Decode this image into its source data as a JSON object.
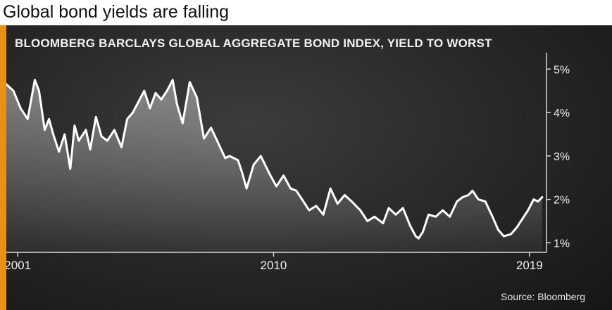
{
  "header": {
    "title": "Global bond yields are falling"
  },
  "chart_data": {
    "type": "area",
    "title": "BLOOMBERG BARCLAYS GLOBAL AGGREGATE BOND INDEX, YIELD TO WORST",
    "xlabel": "",
    "ylabel": "",
    "x_ticks": [
      {
        "value": 2001.0,
        "label": "2001"
      },
      {
        "value": 2010.0,
        "label": "2010"
      },
      {
        "value": 2019.0,
        "label": "2019"
      }
    ],
    "y_ticks": [
      {
        "value": 5,
        "label": "5%"
      },
      {
        "value": 4,
        "label": "4%"
      },
      {
        "value": 3,
        "label": "3%"
      },
      {
        "value": 2,
        "label": "2%"
      },
      {
        "value": 1,
        "label": "1%"
      }
    ],
    "xlim": [
      2000.6,
      2019.6
    ],
    "ylim": [
      0.78,
      5.28
    ],
    "y_axis_side": "right",
    "grid": false,
    "legend": "none",
    "line_color": "#ffffff",
    "series": [
      {
        "x": [
          2000.6,
          2000.85,
          2001.1,
          2001.35,
          2001.6,
          2001.75,
          2001.95,
          2002.1,
          2002.25,
          2002.45,
          2002.65,
          2002.85,
          2003.0,
          2003.15,
          2003.4,
          2003.55,
          2003.75,
          2003.95,
          2004.15,
          2004.4,
          2004.65,
          2004.85,
          2005.05,
          2005.25,
          2005.45,
          2005.65,
          2005.85,
          2006.05,
          2006.25,
          2006.45,
          2006.6,
          2006.8,
          2007.05,
          2007.3,
          2007.55,
          2007.8,
          2008.05,
          2008.3,
          2008.45,
          2008.6,
          2008.75,
          2008.9,
          2009.05,
          2009.3,
          2009.55,
          2009.85,
          2010.1,
          2010.35,
          2010.6,
          2010.8,
          2011.05,
          2011.25,
          2011.5,
          2011.75,
          2012.0,
          2012.25,
          2012.5,
          2012.75,
          2013.05,
          2013.3,
          2013.55,
          2013.85,
          2014.05,
          2014.3,
          2014.55,
          2014.8,
          2015.0,
          2015.1,
          2015.25,
          2015.45,
          2015.7,
          2015.95,
          2016.2,
          2016.45,
          2016.65,
          2016.85,
          2017.0,
          2017.2,
          2017.45,
          2017.7,
          2017.9,
          2018.1,
          2018.35,
          2018.55,
          2018.75,
          2018.95,
          2019.15,
          2019.3,
          2019.45
        ],
        "y": [
          4.65,
          4.5,
          4.1,
          3.85,
          4.75,
          4.5,
          3.6,
          3.85,
          3.5,
          3.1,
          3.5,
          2.7,
          3.7,
          3.35,
          3.6,
          3.15,
          3.9,
          3.45,
          3.35,
          3.6,
          3.2,
          3.85,
          4.0,
          4.25,
          4.5,
          4.1,
          4.45,
          4.3,
          4.5,
          4.75,
          4.2,
          3.75,
          4.7,
          4.35,
          3.4,
          3.65,
          3.3,
          2.95,
          3.0,
          2.95,
          2.9,
          2.6,
          2.25,
          2.8,
          3.0,
          2.6,
          2.3,
          2.55,
          2.25,
          2.2,
          1.95,
          1.75,
          1.85,
          1.65,
          2.25,
          1.9,
          2.1,
          1.95,
          1.75,
          1.5,
          1.6,
          1.45,
          1.8,
          1.65,
          1.8,
          1.4,
          1.15,
          1.1,
          1.25,
          1.65,
          1.6,
          1.75,
          1.6,
          1.95,
          2.05,
          2.1,
          2.2,
          2.0,
          1.95,
          1.6,
          1.3,
          1.15,
          1.2,
          1.35,
          1.55,
          1.75,
          2.0,
          1.95,
          2.05
        ]
      }
    ]
  },
  "footer": {
    "source": "Source: Bloomberg"
  }
}
